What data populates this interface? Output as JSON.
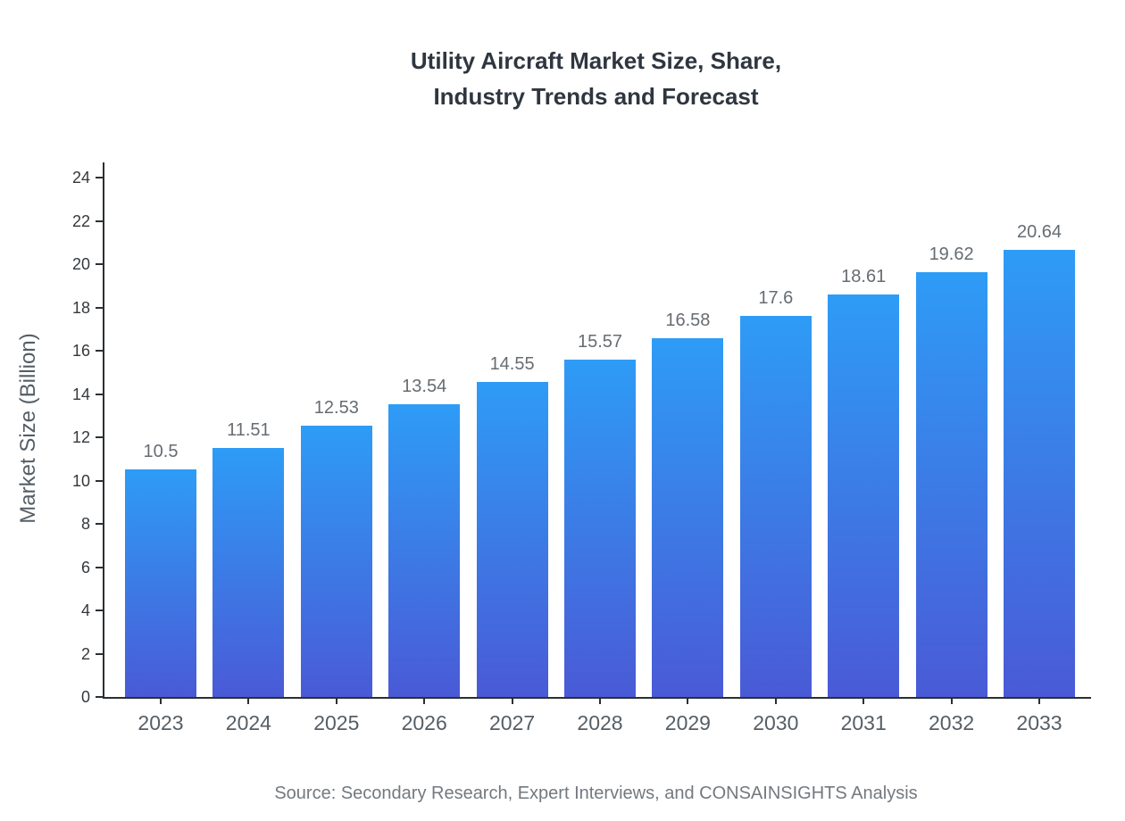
{
  "title": {
    "line1": "Utility Aircraft Market Size, Share,",
    "line2": "Industry Trends and Forecast"
  },
  "source": "Source: Secondary Research, Expert Interviews, and CONSAINSIGHTS Analysis",
  "colors": {
    "bar_gradient_top": "#2e9cf6",
    "bar_gradient_bottom": "#4a5ad6",
    "axis_line": "#2b2f33",
    "title_text": "#2f3640",
    "value_label_text": "#666c72",
    "axis_label_text": "#555e66",
    "source_text": "#73797f"
  },
  "chart_data": {
    "type": "bar",
    "title": "Utility Aircraft Market Size, Share, Industry Trends and Forecast",
    "categories": [
      "2023",
      "2024",
      "2025",
      "2026",
      "2027",
      "2028",
      "2029",
      "2030",
      "2031",
      "2032",
      "2033"
    ],
    "values": [
      10.5,
      11.51,
      12.53,
      13.54,
      14.55,
      15.57,
      16.58,
      17.6,
      18.61,
      19.62,
      20.64
    ],
    "value_labels": [
      "10.5",
      "11.51",
      "12.53",
      "13.54",
      "14.55",
      "15.57",
      "16.58",
      "17.6",
      "18.61",
      "19.62",
      "20.64"
    ],
    "xlabel": "",
    "ylabel": "Market Size (Billion)",
    "ylim": [
      0,
      24
    ],
    "yticks": [
      0,
      2,
      4,
      6,
      8,
      10,
      12,
      14,
      16,
      18,
      20,
      22,
      24
    ],
    "grid": false,
    "legend": "none",
    "bar_value_labels_visible": true
  }
}
